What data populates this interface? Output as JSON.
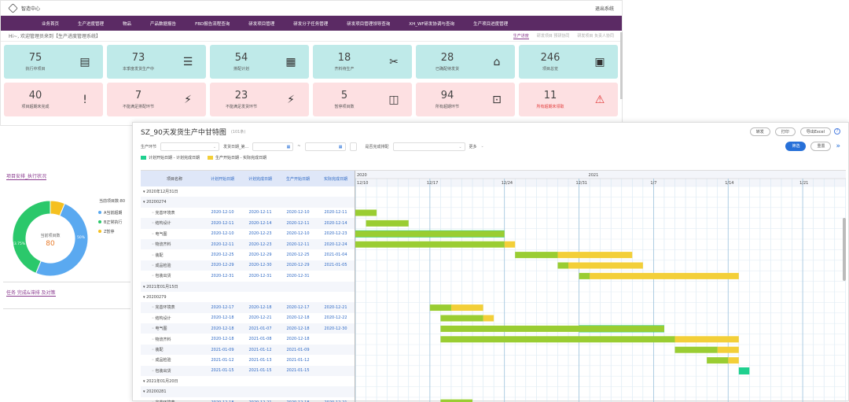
{
  "app": {
    "title": "智造中心",
    "exit": "退出系统"
  },
  "nav": [
    "业务首页",
    "生产进度管理",
    "物品",
    "产品数据报告",
    "FBD报告流程查询",
    "研发项目管理",
    "研发分子任务管理",
    "研发项目管理领导查询",
    "XH_WF研发协调与查询",
    "生产项目进度管理"
  ],
  "welcome": "Hi~, 欢迎管理员来到【生产进度管理系统】",
  "tabs": [
    "生产进度",
    "研发项目 预研协同",
    "研发项目 负责人协同"
  ],
  "cards_top": [
    {
      "num": "75",
      "label": "执行中项目",
      "icon": "report-icon"
    },
    {
      "num": "73",
      "label": "本季度发货生产中",
      "icon": "list-icon"
    },
    {
      "num": "54",
      "label": "排配计划",
      "icon": "schedule-icon"
    },
    {
      "num": "18",
      "label": "齐料待生产",
      "icon": "tools-icon"
    },
    {
      "num": "28",
      "label": "已确配待发货",
      "icon": "ship-icon"
    },
    {
      "num": "246",
      "label": "项目总览",
      "icon": "overview-icon"
    }
  ],
  "cards_bottom": [
    {
      "num": "40",
      "label": "项目超期未完成",
      "icon": "exclamation-icon"
    },
    {
      "num": "7",
      "label": "不能满足排配环节",
      "icon": "lightning-icon"
    },
    {
      "num": "23",
      "label": "不能满足发货环节",
      "icon": "lightning-icon"
    },
    {
      "num": "5",
      "label": "暂停项目数",
      "icon": "pause-icon"
    },
    {
      "num": "94",
      "label": "所有超期环节",
      "icon": "monitor-icon"
    },
    {
      "num": "11",
      "label": "所有超期未领取",
      "icon": "alarm-icon",
      "red": true
    }
  ],
  "left": {
    "section1": "项目安排_执行状况",
    "pie_title": "当前项目数:80",
    "pie_center_label": "当前项目数",
    "pie_center_value": "80",
    "legend": [
      "A当前超期",
      "B正常执行",
      "Z暂停"
    ],
    "legend_colors": [
      "#5aa9f0",
      "#2bc86b",
      "#f5c020"
    ],
    "pie_labels": [
      "43.75%",
      "50%"
    ],
    "section2": "任务 完成&滞排 及对策"
  },
  "chart_data": {
    "type": "pie",
    "labels": [
      "A当前超期",
      "B正常执行",
      "Z暂停"
    ],
    "values": [
      50,
      43.75,
      6.25
    ]
  },
  "gantt": {
    "title": "SZ_90天发货生产中甘特图",
    "subtitle": "(101条)",
    "buttons": [
      "转发",
      "打印",
      "导出Excel"
    ],
    "help": "?",
    "filters": {
      "f1": "生产环节",
      "f2": "发货日期_第...",
      "sep": "~",
      "f3": "是否完成排配",
      "more": "更多"
    },
    "query": "筛选",
    "reset": "重置",
    "expand": "»",
    "legend": [
      "计划开始日期 - 计划完成日期",
      "生产开始日期 - 实际完成日期"
    ],
    "columns": [
      "项目名称",
      "计划开始日期",
      "计划完成日期",
      "生产开始日期",
      "实际完成日期"
    ],
    "year_left": "2020",
    "year_right": "2021",
    "dates": [
      "12/10",
      "12/17",
      "12/24",
      "12/31",
      "1/7",
      "1/14",
      "1/21"
    ],
    "rows": [
      {
        "name": "▾ 2020年12月31日",
        "group": true,
        "v": [
          "",
          "",
          "",
          ""
        ]
      },
      {
        "name": "▾ 20200274",
        "group": true,
        "v": [
          "",
          "",
          "",
          ""
        ]
      },
      {
        "name": "◦ 完善环境表",
        "v": [
          "2020-12-10",
          "2020-12-11",
          "2020-12-10",
          "2020-12-11"
        ]
      },
      {
        "name": "◦ 结构设计",
        "v": [
          "2020-12-11",
          "2020-12-14",
          "2020-12-11",
          "2020-12-14"
        ]
      },
      {
        "name": "◦ 电气图",
        "v": [
          "2020-12-10",
          "2020-12-23",
          "2020-12-10",
          "2020-12-23"
        ]
      },
      {
        "name": "◦ 物流齐料",
        "v": [
          "2020-12-11",
          "2020-12-23",
          "2020-12-11",
          "2020-12-24"
        ]
      },
      {
        "name": "◦ 装配",
        "v": [
          "2020-12-25",
          "2020-12-29",
          "2020-12-25",
          "2021-01-04"
        ]
      },
      {
        "name": "◦ 成品检验",
        "v": [
          "2020-12-29",
          "2020-12-30",
          "2020-12-29",
          "2021-01-05"
        ]
      },
      {
        "name": "◦ 包装出货",
        "v": [
          "2020-12-31",
          "2020-12-31",
          "2020-12-31",
          ""
        ]
      },
      {
        "name": "▾ 2021年01月15日",
        "group": true,
        "v": [
          "",
          "",
          "",
          ""
        ]
      },
      {
        "name": "▾ 20200279",
        "group": true,
        "v": [
          "",
          "",
          "",
          ""
        ]
      },
      {
        "name": "◦ 完善环境表",
        "v": [
          "2020-12-17",
          "2020-12-18",
          "2020-12-17",
          "2020-12-21"
        ]
      },
      {
        "name": "◦ 结构设计",
        "v": [
          "2020-12-18",
          "2020-12-21",
          "2020-12-18",
          "2020-12-22"
        ]
      },
      {
        "name": "◦ 电气图",
        "v": [
          "2020-12-18",
          "2021-01-07",
          "2020-12-18",
          "2020-12-30"
        ]
      },
      {
        "name": "◦ 物流齐料",
        "v": [
          "2020-12-18",
          "2021-01-08",
          "2020-12-18",
          ""
        ]
      },
      {
        "name": "◦ 装配",
        "v": [
          "2021-01-09",
          "2021-01-12",
          "2021-01-09",
          ""
        ]
      },
      {
        "name": "◦ 成品检验",
        "v": [
          "2021-01-12",
          "2021-01-13",
          "2021-01-12",
          ""
        ]
      },
      {
        "name": "◦ 包装出货",
        "v": [
          "2021-01-15",
          "2021-01-15",
          "2021-01-15",
          ""
        ]
      },
      {
        "name": "▾ 2021年01月20日",
        "group": true,
        "v": [
          "",
          "",
          "",
          ""
        ]
      },
      {
        "name": "▾ 20200281",
        "group": true,
        "v": [
          "",
          "",
          "",
          ""
        ]
      },
      {
        "name": "◦ 完善环境表",
        "v": [
          "2020-12-18",
          "2020-12-21",
          "2020-12-18",
          "2020-12-21"
        ]
      }
    ],
    "bars": [
      {
        "row": 2,
        "g": [
          "2020-12-10",
          "2020-12-12"
        ]
      },
      {
        "row": 3,
        "g": [
          "2020-12-11",
          "2020-12-15"
        ]
      },
      {
        "row": 4,
        "g": [
          "2020-12-10",
          "2020-12-24"
        ]
      },
      {
        "row": 5,
        "g": [
          "2020-12-10",
          "2020-12-24"
        ],
        "y": [
          "2020-12-24",
          "2020-12-25"
        ]
      },
      {
        "row": 6,
        "g": [
          "2020-12-25",
          "2020-12-29"
        ],
        "y": [
          "2020-12-29",
          "2021-01-05"
        ]
      },
      {
        "row": 7,
        "g": [
          "2020-12-29",
          "2020-12-30"
        ],
        "y": [
          "2020-12-30",
          "2021-01-06"
        ]
      },
      {
        "row": 8,
        "g": [
          "2020-12-31",
          "2021-01-01"
        ],
        "y": [
          "2021-01-01",
          "2021-01-15"
        ]
      },
      {
        "row": 11,
        "g": [
          "2020-12-17",
          "2020-12-19"
        ],
        "y": [
          "2020-12-19",
          "2020-12-22"
        ]
      },
      {
        "row": 12,
        "g": [
          "2020-12-18",
          "2020-12-22"
        ],
        "y": [
          "2020-12-22",
          "2020-12-23"
        ]
      },
      {
        "row": 13,
        "g": [
          "2020-12-18",
          "2021-01-08"
        ],
        "y": []
      },
      {
        "row": 14,
        "g": [
          "2020-12-18",
          "2021-01-09"
        ],
        "y": [
          "2021-01-09",
          "2021-01-15"
        ]
      },
      {
        "row": 15,
        "g": [
          "2021-01-09",
          "2021-01-13"
        ],
        "y": [
          "2021-01-13",
          "2021-01-15"
        ]
      },
      {
        "row": 16,
        "g": [
          "2021-01-12",
          "2021-01-14"
        ],
        "y": [
          "2021-01-14",
          "2021-01-15"
        ]
      },
      {
        "row": 17,
        "t": [
          "2021-01-15",
          "2021-01-16"
        ]
      },
      {
        "row": 20,
        "g": [
          "2020-12-18",
          "2020-12-21"
        ]
      }
    ],
    "teal_bars": [
      {
        "row": 4,
        "t": [
          "2020-12-10",
          "2020-12-24"
        ]
      },
      {
        "row": 13,
        "t": [
          "2020-12-31",
          "2021-01-08"
        ]
      }
    ]
  }
}
